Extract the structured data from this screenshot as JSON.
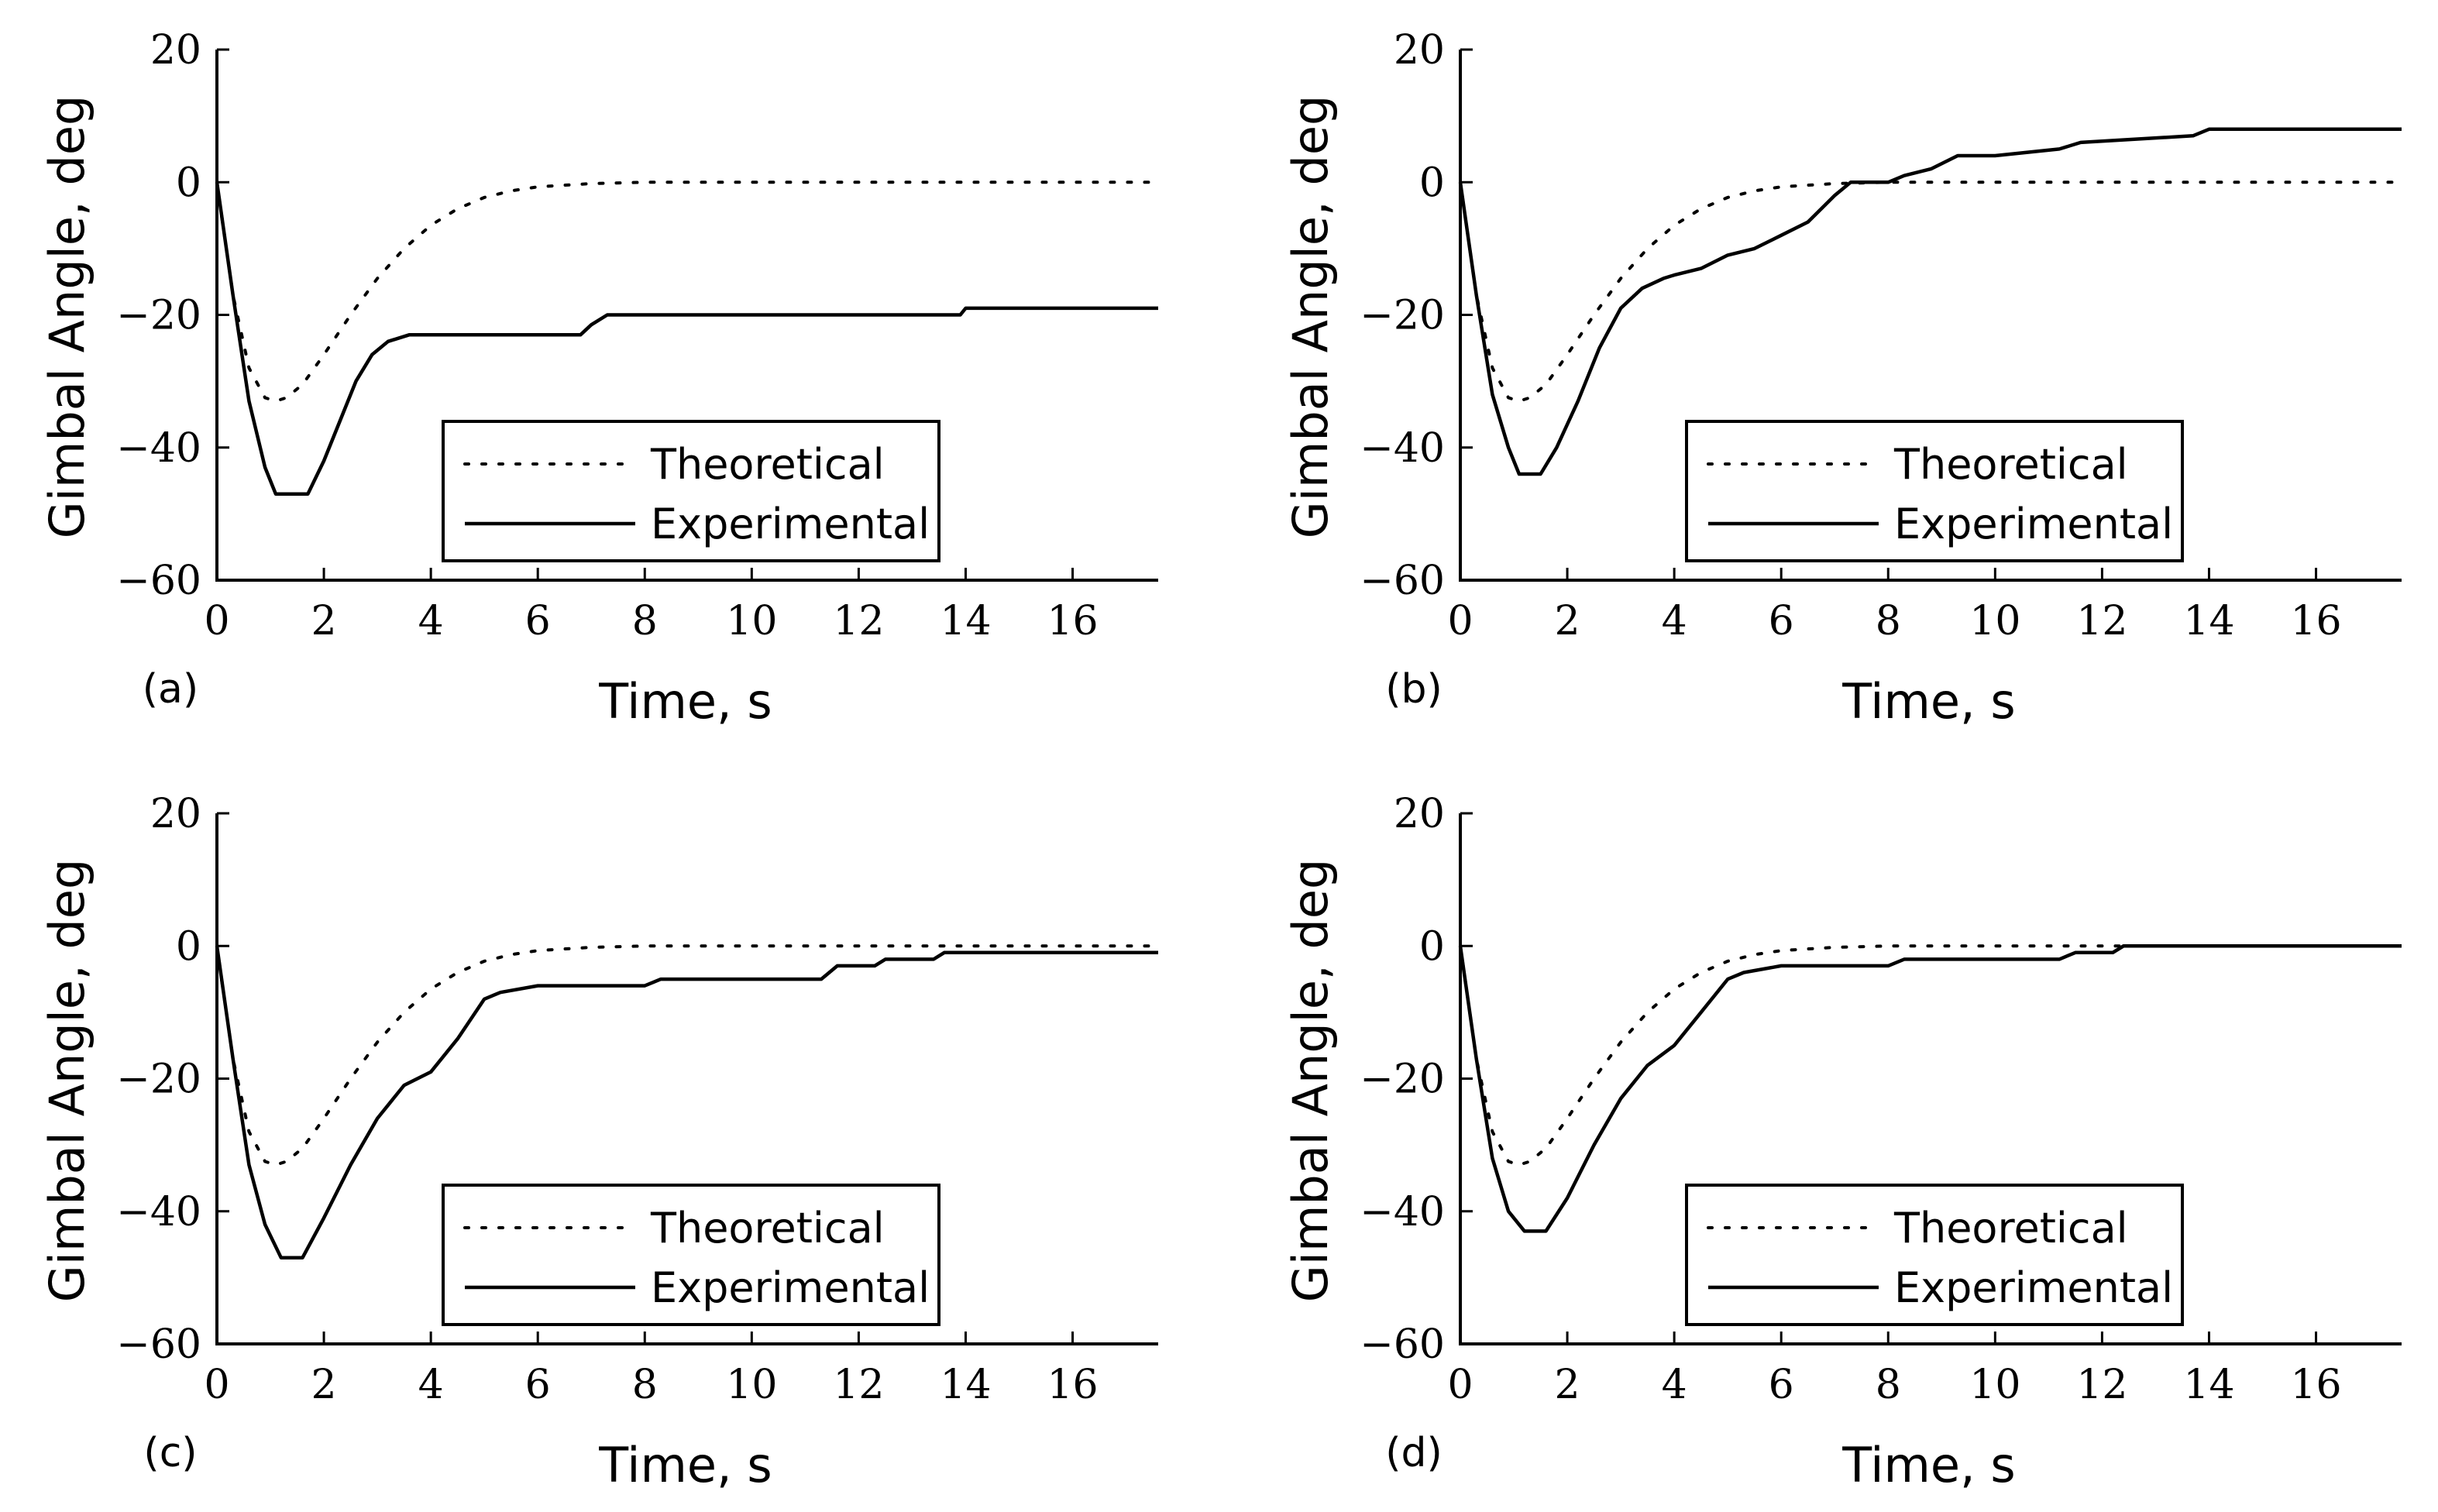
{
  "chart_data": [
    {
      "type": "line",
      "panel_label": "(a)",
      "xlabel": "Time, s",
      "ylabel": "Gimbal Angle, deg",
      "xlim": [
        0,
        17.6
      ],
      "ylim": [
        -60,
        20
      ],
      "xticks": [
        0,
        2,
        4,
        6,
        8,
        10,
        12,
        14,
        16
      ],
      "yticks": [
        -60,
        -40,
        -20,
        0,
        20
      ],
      "legend": [
        "Theoretical",
        "Experimental"
      ],
      "legend_position": "lower-center",
      "series": [
        {
          "name": "Theoretical",
          "style": "dotted",
          "x": [
            0,
            0.3,
            0.6,
            0.9,
            1.1,
            1.3,
            1.6,
            2.0,
            2.5,
            3.0,
            3.5,
            4.0,
            4.5,
            5.0,
            5.5,
            6.0,
            7.0,
            8.0,
            10.0,
            17.6
          ],
          "y": [
            0,
            -17,
            -28,
            -32.5,
            -33,
            -32.5,
            -30.5,
            -26,
            -20,
            -14.5,
            -10,
            -6.5,
            -4,
            -2.3,
            -1.3,
            -0.7,
            -0.2,
            0,
            0,
            0
          ]
        },
        {
          "name": "Experimental",
          "style": "solid",
          "x": [
            0,
            0.3,
            0.6,
            0.9,
            1.1,
            1.7,
            2.0,
            2.3,
            2.6,
            2.9,
            3.2,
            3.6,
            6.8,
            7.0,
            7.3,
            13.9,
            14.0,
            17.6
          ],
          "y": [
            0,
            -17,
            -33,
            -43,
            -47,
            -47,
            -42,
            -36,
            -30,
            -26,
            -24,
            -23,
            -23,
            -21.5,
            -20,
            -20,
            -19,
            -19
          ]
        }
      ]
    },
    {
      "type": "line",
      "panel_label": "(b)",
      "xlabel": "Time, s",
      "ylabel": "Gimbal Angle, deg",
      "xlim": [
        0,
        17.6
      ],
      "ylim": [
        -60,
        20
      ],
      "xticks": [
        0,
        2,
        4,
        6,
        8,
        10,
        12,
        14,
        16
      ],
      "yticks": [
        -60,
        -40,
        -20,
        0,
        20
      ],
      "legend": [
        "Theoretical",
        "Experimental"
      ],
      "legend_position": "lower-center",
      "series": [
        {
          "name": "Theoretical",
          "style": "dotted",
          "x": [
            0,
            0.3,
            0.6,
            0.9,
            1.1,
            1.3,
            1.6,
            2.0,
            2.5,
            3.0,
            3.5,
            4.0,
            4.5,
            5.0,
            5.5,
            6.0,
            7.0,
            8.0,
            10.0,
            17.6
          ],
          "y": [
            0,
            -17,
            -28,
            -32.5,
            -33,
            -32.5,
            -30.5,
            -26,
            -20,
            -14.5,
            -10,
            -6.5,
            -4,
            -2.3,
            -1.3,
            -0.7,
            -0.2,
            0,
            0,
            0
          ]
        },
        {
          "name": "Experimental",
          "style": "solid",
          "x": [
            0,
            0.3,
            0.6,
            0.9,
            1.1,
            1.5,
            1.8,
            2.2,
            2.6,
            3.0,
            3.4,
            3.8,
            4.0,
            4.5,
            5.0,
            5.5,
            6.0,
            6.5,
            7.0,
            7.3,
            8.0,
            8.3,
            8.8,
            9.3,
            10.0,
            11.2,
            11.6,
            13.7,
            14.0,
            17.6
          ],
          "y": [
            0,
            -17,
            -32,
            -40,
            -44,
            -44,
            -40,
            -33,
            -25,
            -19,
            -16,
            -14.5,
            -14,
            -13,
            -11,
            -10,
            -8,
            -6,
            -2,
            0,
            0,
            1,
            2,
            4,
            4,
            5,
            6,
            7,
            8,
            8
          ]
        }
      ]
    },
    {
      "type": "line",
      "panel_label": "(c)",
      "xlabel": "Time, s",
      "ylabel": "Gimbal Angle, deg",
      "xlim": [
        0,
        17.6
      ],
      "ylim": [
        -60,
        20
      ],
      "xticks": [
        0,
        2,
        4,
        6,
        8,
        10,
        12,
        14,
        16
      ],
      "yticks": [
        -60,
        -40,
        -20,
        0,
        20
      ],
      "legend": [
        "Theoretical",
        "Experimental"
      ],
      "legend_position": "lower-center",
      "series": [
        {
          "name": "Theoretical",
          "style": "dotted",
          "x": [
            0,
            0.3,
            0.6,
            0.9,
            1.1,
            1.3,
            1.6,
            2.0,
            2.5,
            3.0,
            3.5,
            4.0,
            4.5,
            5.0,
            5.5,
            6.0,
            7.0,
            8.0,
            10.0,
            17.6
          ],
          "y": [
            0,
            -17,
            -28,
            -32.5,
            -33,
            -32.5,
            -30.5,
            -26,
            -20,
            -14.5,
            -10,
            -6.5,
            -4,
            -2.3,
            -1.3,
            -0.7,
            -0.2,
            0,
            0,
            0
          ]
        },
        {
          "name": "Experimental",
          "style": "solid",
          "x": [
            0,
            0.3,
            0.6,
            0.9,
            1.2,
            1.6,
            2.0,
            2.5,
            3.0,
            3.5,
            4.0,
            4.5,
            5.0,
            5.3,
            6.0,
            8.0,
            8.3,
            11.3,
            11.6,
            12.3,
            12.5,
            13.4,
            13.6,
            17.6
          ],
          "y": [
            0,
            -17,
            -33,
            -42,
            -47,
            -47,
            -41,
            -33,
            -26,
            -21,
            -19,
            -14,
            -8,
            -7,
            -6,
            -6,
            -5,
            -5,
            -3,
            -3,
            -2,
            -2,
            -1,
            -1
          ]
        }
      ]
    },
    {
      "type": "line",
      "panel_label": "(d)",
      "xlabel": "Time, s",
      "ylabel": "Gimbal Angle, deg",
      "xlim": [
        0,
        17.6
      ],
      "ylim": [
        -60,
        20
      ],
      "xticks": [
        0,
        2,
        4,
        6,
        8,
        10,
        12,
        14,
        16
      ],
      "yticks": [
        -60,
        -40,
        -20,
        0,
        20
      ],
      "legend": [
        "Theoretical",
        "Experimental"
      ],
      "legend_position": "lower-center",
      "series": [
        {
          "name": "Theoretical",
          "style": "dotted",
          "x": [
            0,
            0.3,
            0.6,
            0.9,
            1.1,
            1.3,
            1.6,
            2.0,
            2.5,
            3.0,
            3.5,
            4.0,
            4.5,
            5.0,
            5.5,
            6.0,
            7.0,
            8.0,
            10.0,
            17.6
          ],
          "y": [
            0,
            -17,
            -28,
            -32.5,
            -33,
            -32.5,
            -30.5,
            -26,
            -20,
            -14.5,
            -10,
            -6.5,
            -4,
            -2.3,
            -1.3,
            -0.7,
            -0.2,
            0,
            0,
            0
          ]
        },
        {
          "name": "Experimental",
          "style": "solid",
          "x": [
            0,
            0.3,
            0.6,
            0.9,
            1.2,
            1.6,
            2.0,
            2.5,
            3.0,
            3.5,
            4.0,
            4.5,
            5.0,
            5.3,
            6.0,
            8.0,
            8.3,
            11.2,
            11.5,
            12.2,
            12.4,
            17.6
          ],
          "y": [
            0,
            -17,
            -32,
            -40,
            -43,
            -43,
            -38,
            -30,
            -23,
            -18,
            -15,
            -10,
            -5,
            -4,
            -3,
            -3,
            -2,
            -2,
            -1,
            -1,
            0,
            0
          ]
        }
      ]
    }
  ]
}
